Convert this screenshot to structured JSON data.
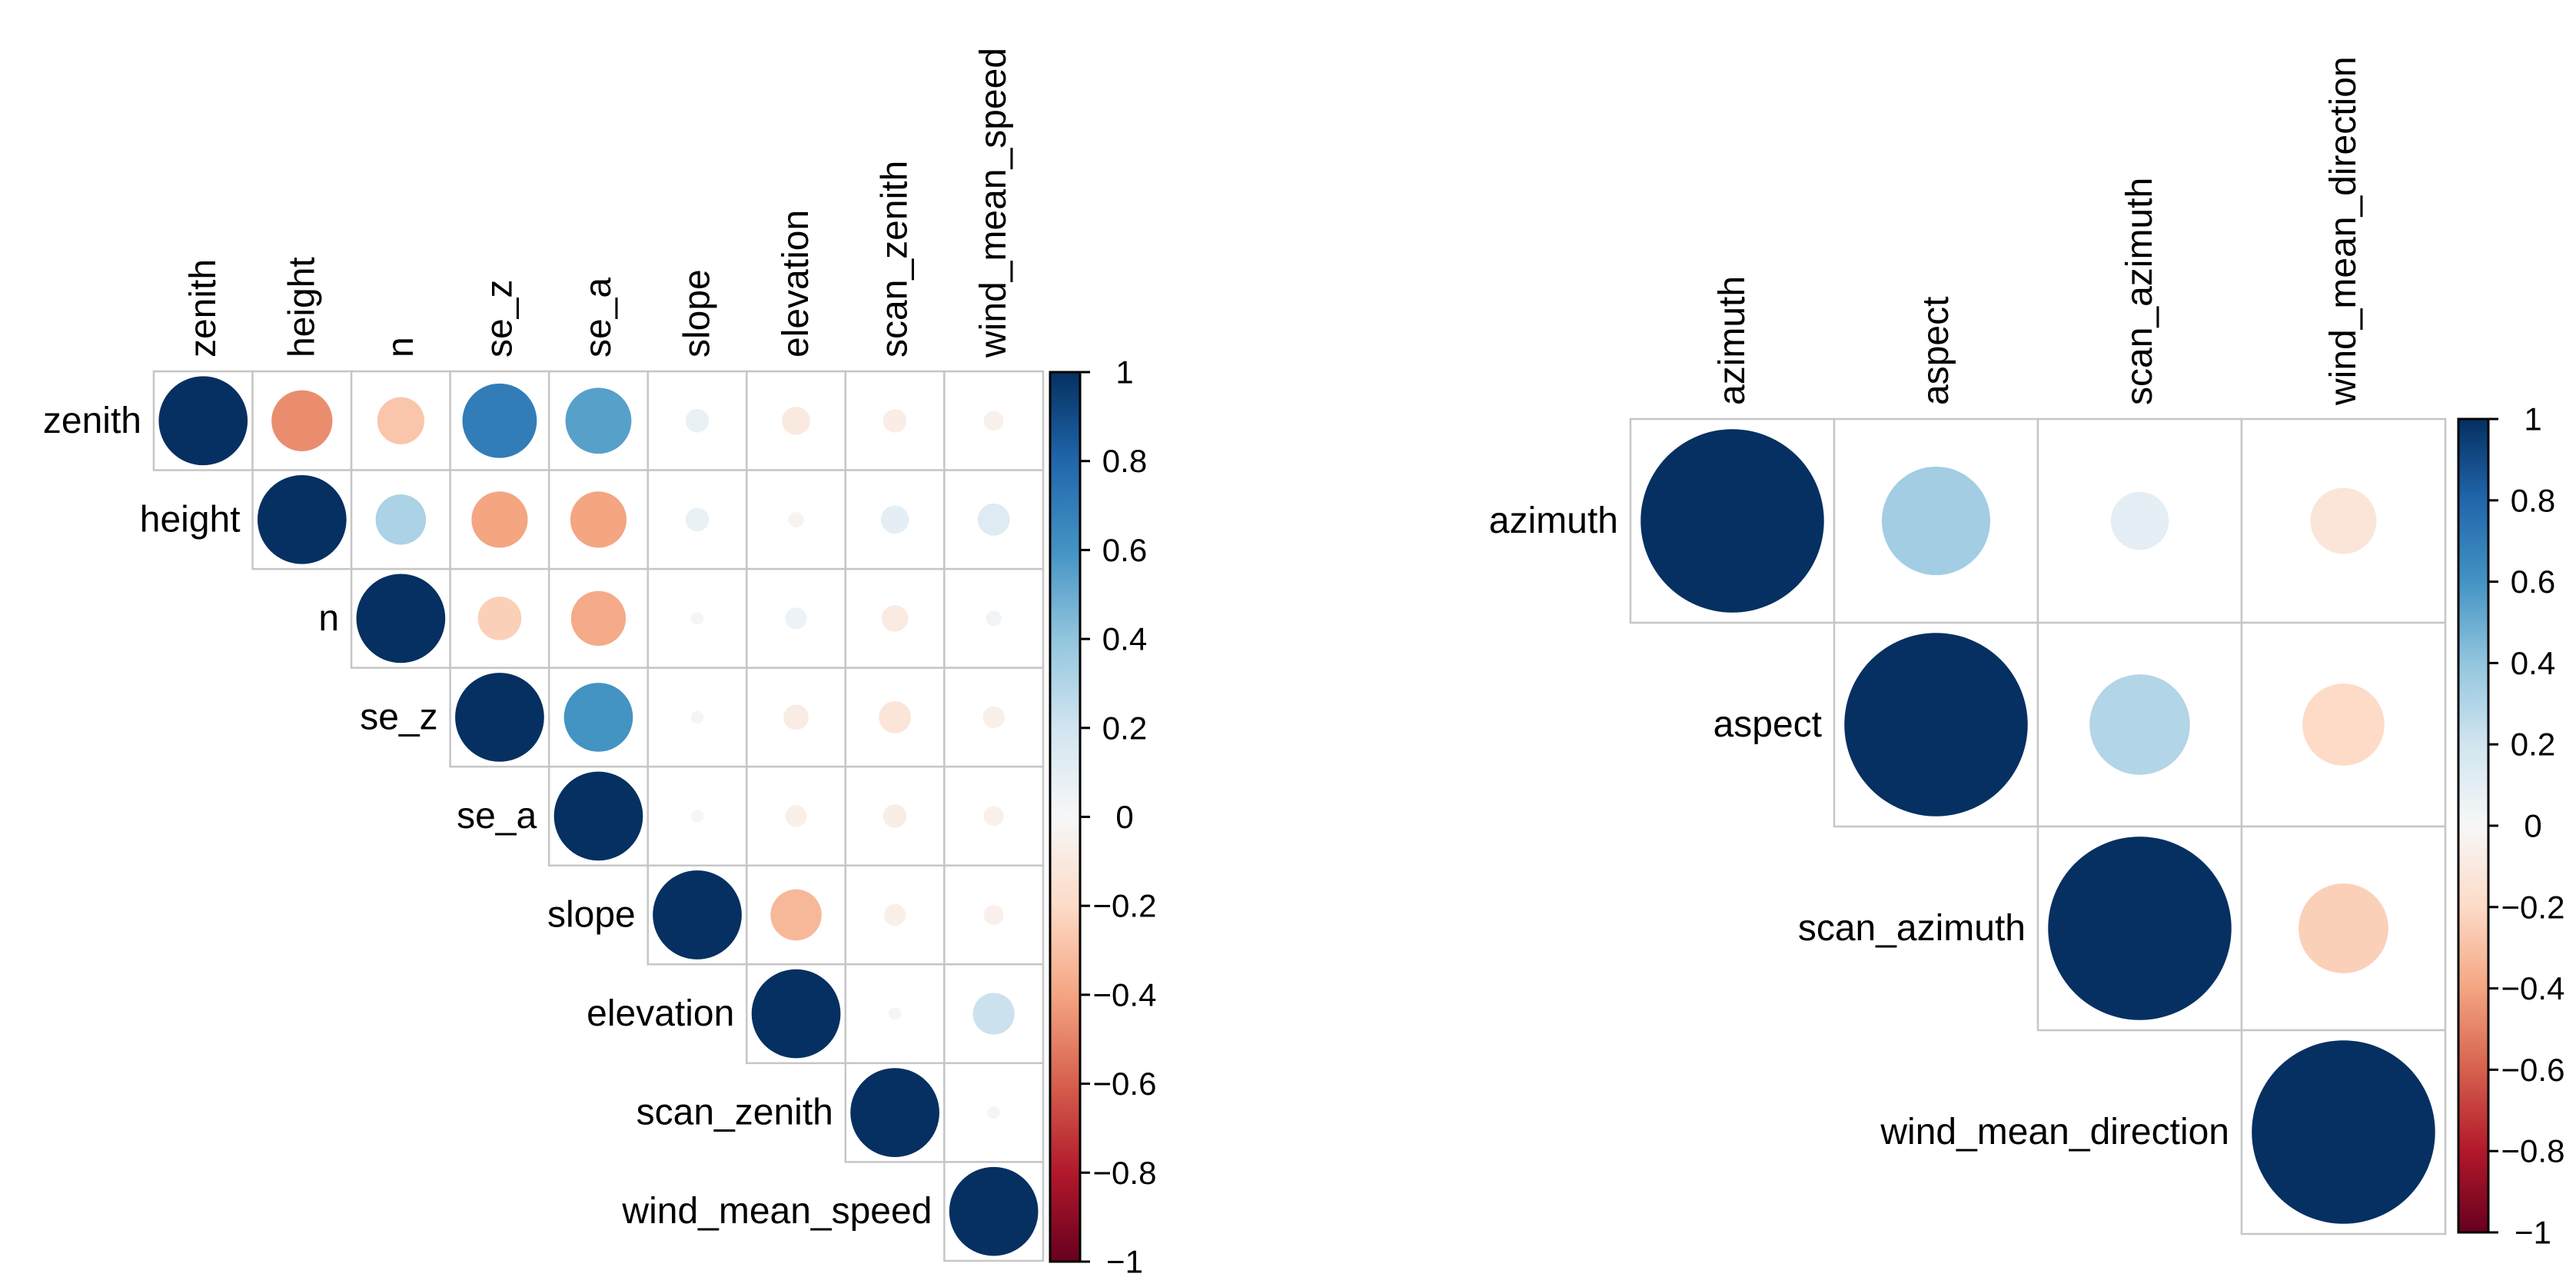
{
  "figure": {
    "background": "#ffffff",
    "description": "Two upper-triangular correlation matrix plots (corrplot style) with circle size and color encoding correlation, each with a vertical diverging colorbar legend on the right"
  },
  "palette": {
    "name": "RdBu-diverging",
    "anchor_values": [
      1,
      0.8,
      0.6,
      0.4,
      0.2,
      0,
      -0.2,
      -0.4,
      -0.6,
      -0.8,
      -1
    ],
    "anchor_colors": [
      "#053061",
      "#2166ac",
      "#4393c3",
      "#92c5de",
      "#d1e5f0",
      "#f7f7f7",
      "#fddbc7",
      "#f4a582",
      "#d6604d",
      "#b2182b",
      "#67001f"
    ],
    "grid_line_color": "#c6c6c6",
    "colorbar_border_color": "#000000"
  },
  "chart_data": [
    {
      "type": "heatmap",
      "subtype": "correlation-circles-upper-triangle",
      "title": "",
      "variables": [
        "zenith",
        "height",
        "n",
        "se_z",
        "se_a",
        "slope",
        "elevation",
        "scan_zenith",
        "wind_mean_speed"
      ],
      "upper_triangle": [
        [
          1,
          -0.47,
          -0.28,
          0.7,
          0.55,
          0.07,
          -0.1,
          -0.07,
          -0.05
        ],
        [
          1,
          0.32,
          -0.4,
          -0.4,
          0.07,
          -0.03,
          0.1,
          0.13
        ],
        [
          1,
          -0.24,
          -0.38,
          0.02,
          0.06,
          -0.09,
          0.03
        ],
        [
          1,
          0.6,
          0.02,
          -0.08,
          -0.13,
          -0.06
        ],
        [
          1,
          0.02,
          -0.06,
          -0.07,
          -0.05
        ],
        [
          1,
          -0.33,
          -0.06,
          -0.05
        ],
        [
          1,
          -0.02,
          0.22
        ],
        [
          1,
          0.02
        ],
        [
          1
        ]
      ],
      "circle_encoding": "area proportional to |r|, color from diverging palette",
      "legend_position": "right",
      "colorbar": {
        "range": [
          -1,
          1
        ],
        "tick_values": [
          1,
          0.8,
          0.6,
          0.4,
          0.2,
          0,
          -0.2,
          -0.4,
          -0.6,
          -0.8,
          -1
        ],
        "tick_labels": [
          "1",
          "0.8",
          "0.6",
          "0.4",
          "0.2",
          "0",
          "−0.2",
          "−0.4",
          "−0.6",
          "−0.8",
          "−1"
        ]
      }
    },
    {
      "type": "heatmap",
      "subtype": "correlation-circles-upper-triangle",
      "title": "",
      "variables": [
        "azimuth",
        "aspect",
        "scan_azimuth",
        "wind_mean_direction"
      ],
      "upper_triangle": [
        [
          1,
          0.35,
          0.1,
          -0.13
        ],
        [
          1,
          0.3,
          -0.2
        ],
        [
          1,
          -0.24
        ],
        [
          1
        ]
      ],
      "circle_encoding": "area proportional to |r|, color from diverging palette",
      "legend_position": "right",
      "colorbar": {
        "range": [
          -1,
          1
        ],
        "tick_values": [
          1,
          0.8,
          0.6,
          0.4,
          0.2,
          0,
          -0.2,
          -0.4,
          -0.6,
          -0.8,
          -1
        ],
        "tick_labels": [
          "1",
          "0.8",
          "0.6",
          "0.4",
          "0.2",
          "0",
          "−0.2",
          "−0.4",
          "−0.6",
          "−0.8",
          "−1"
        ]
      }
    }
  ]
}
